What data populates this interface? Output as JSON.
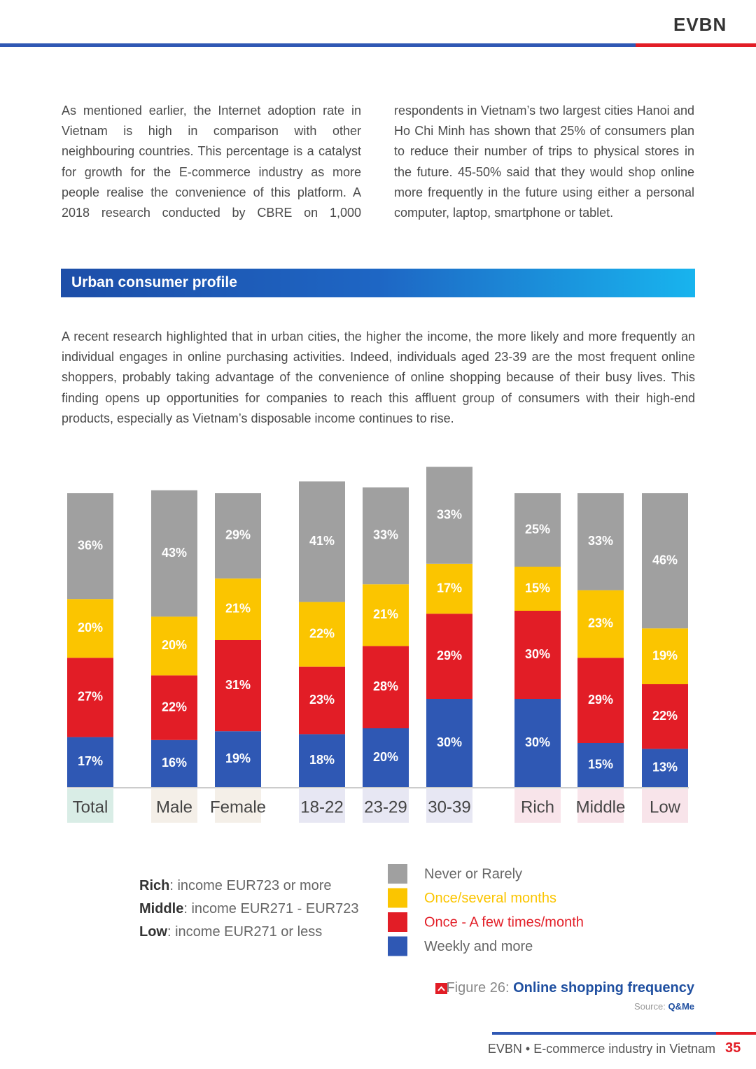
{
  "header": {
    "logo": "EVBN"
  },
  "intro": {
    "left": "As mentioned earlier, the Internet adoption rate in Vietnam is high in comparison with other neighbouring countries. This percentage is a catalyst for growth for the E-commerce industry as more people realise the convenience of this platform. A 2018 research conducted by CBRE on 1,000",
    "right": "respondents in Vietnam’s two largest cities Hanoi and Ho Chi Minh has shown that 25% of consumers plan to reduce their number of trips to physical stores in the future. 45-50% said that they would shop online more frequently in the future using either a personal computer, laptop, smartphone or tablet."
  },
  "section_title": "Urban consumer profile",
  "body": "A recent research highlighted that in urban cities, the higher the income, the more likely and more frequently an individual engages in online purchasing activities. Indeed, individuals aged 23-39 are the most frequent online shoppers, probably taking advantage of the convenience of online shopping because of their busy lives. This finding opens up opportunities for companies to reach this affluent group of consumers with their high-end products, especially as Vietnam’s disposable income continues to rise.",
  "chart_data": {
    "type": "bar",
    "stacked": true,
    "categories": [
      "Total",
      "Male",
      "Female",
      "18-22",
      "23-29",
      "30-39",
      "Rich",
      "Middle",
      "Low"
    ],
    "series": [
      {
        "name": "Never or Rarely",
        "color": "#a0a0a0",
        "values": [
          36,
          43,
          29,
          41,
          33,
          33,
          25,
          33,
          46
        ],
        "value_labels": [
          "36%",
          "43%",
          "29%",
          "41%",
          "33%",
          "33%",
          "25%",
          "33%",
          "46%"
        ]
      },
      {
        "name": "Once/several months",
        "color": "#fbc500",
        "values": [
          20,
          20,
          21,
          22,
          21,
          17,
          15,
          23,
          19
        ],
        "value_labels": [
          "20%",
          "20%",
          "21%",
          "22%",
          "21%",
          "17%",
          "15%",
          "23%",
          "19%"
        ]
      },
      {
        "name": "Once - A few times/month",
        "color": "#e21d26",
        "values": [
          27,
          22,
          31,
          23,
          28,
          29,
          30,
          29,
          22
        ],
        "value_labels": [
          "27%",
          "22%",
          "31%",
          "23%",
          "28%",
          "29%",
          "30%",
          "29%",
          "22%"
        ]
      },
      {
        "name": "Weekly and more",
        "color": "#2f58b4",
        "values": [
          17,
          16,
          19,
          18,
          20,
          30,
          30,
          15,
          13
        ],
        "value_labels": [
          "17%",
          "16%",
          "19%",
          "18%",
          "20%",
          "30%",
          "30%",
          "15%",
          "13%"
        ]
      }
    ]
  },
  "notes": [
    {
      "term": "Rich",
      "text": ": income EUR723 or more"
    },
    {
      "term": "Middle",
      "text": ": income EUR271 - EUR723"
    },
    {
      "term": "Low",
      "text": ": income EUR271 or less"
    }
  ],
  "caption": {
    "label": "Figure 26:",
    "title": "Online shopping frequency",
    "source_label": "Source:",
    "source": "Q&Me"
  },
  "footer": {
    "text": "EVBN • E-commerce industry in Vietnam",
    "page": "35"
  }
}
